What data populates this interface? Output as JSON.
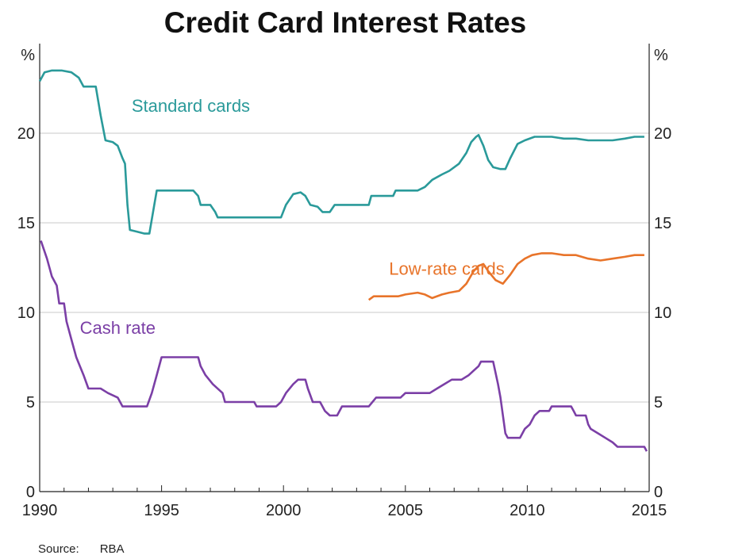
{
  "chart_data": {
    "type": "line",
    "title": "Credit Card Interest Rates",
    "y_unit": "%",
    "ylim": [
      0,
      25
    ],
    "yticks": [
      0,
      5,
      10,
      15,
      20
    ],
    "xlim": [
      1990,
      2015
    ],
    "xticks": [
      1990,
      1995,
      2000,
      2005,
      2010,
      2015
    ],
    "grid": true,
    "legend": "inline labels",
    "source_label": "Source:",
    "source": "RBA",
    "series": [
      {
        "name": "Standard cards",
        "color": "#2a9a9a",
        "points": [
          [
            1990.0,
            22.9
          ],
          [
            1990.2,
            23.4
          ],
          [
            1990.5,
            23.5
          ],
          [
            1990.9,
            23.5
          ],
          [
            1991.3,
            23.4
          ],
          [
            1991.6,
            23.1
          ],
          [
            1991.8,
            22.6
          ],
          [
            1992.3,
            22.6
          ],
          [
            1992.5,
            21.0
          ],
          [
            1992.7,
            19.6
          ],
          [
            1993.0,
            19.5
          ],
          [
            1993.2,
            19.3
          ],
          [
            1993.4,
            18.6
          ],
          [
            1993.5,
            18.3
          ],
          [
            1993.6,
            16.0
          ],
          [
            1993.7,
            14.6
          ],
          [
            1994.0,
            14.5
          ],
          [
            1994.3,
            14.4
          ],
          [
            1994.5,
            14.4
          ],
          [
            1994.7,
            16.0
          ],
          [
            1994.8,
            16.8
          ],
          [
            1995.5,
            16.8
          ],
          [
            1996.3,
            16.8
          ],
          [
            1996.5,
            16.5
          ],
          [
            1996.6,
            16.0
          ],
          [
            1997.0,
            16.0
          ],
          [
            1997.2,
            15.6
          ],
          [
            1997.3,
            15.3
          ],
          [
            1998.0,
            15.3
          ],
          [
            1999.0,
            15.3
          ],
          [
            1999.9,
            15.3
          ],
          [
            2000.1,
            16.0
          ],
          [
            2000.4,
            16.6
          ],
          [
            2000.7,
            16.7
          ],
          [
            2000.9,
            16.5
          ],
          [
            2001.1,
            16.0
          ],
          [
            2001.4,
            15.9
          ],
          [
            2001.6,
            15.6
          ],
          [
            2001.9,
            15.6
          ],
          [
            2002.1,
            16.0
          ],
          [
            2003.0,
            16.0
          ],
          [
            2003.5,
            16.0
          ],
          [
            2003.6,
            16.5
          ],
          [
            2004.5,
            16.5
          ],
          [
            2004.6,
            16.8
          ],
          [
            2005.5,
            16.8
          ],
          [
            2005.8,
            17.0
          ],
          [
            2006.1,
            17.4
          ],
          [
            2006.5,
            17.7
          ],
          [
            2006.8,
            17.9
          ],
          [
            2007.2,
            18.3
          ],
          [
            2007.5,
            18.9
          ],
          [
            2007.7,
            19.5
          ],
          [
            2007.9,
            19.8
          ],
          [
            2008.0,
            19.9
          ],
          [
            2008.2,
            19.3
          ],
          [
            2008.4,
            18.5
          ],
          [
            2008.6,
            18.1
          ],
          [
            2008.9,
            18.0
          ],
          [
            2009.1,
            18.0
          ],
          [
            2009.3,
            18.6
          ],
          [
            2009.6,
            19.4
          ],
          [
            2009.9,
            19.6
          ],
          [
            2010.3,
            19.8
          ],
          [
            2011.0,
            19.8
          ],
          [
            2011.5,
            19.7
          ],
          [
            2012.0,
            19.7
          ],
          [
            2012.5,
            19.6
          ],
          [
            2013.0,
            19.6
          ],
          [
            2013.5,
            19.6
          ],
          [
            2014.0,
            19.7
          ],
          [
            2014.4,
            19.8
          ],
          [
            2014.8,
            19.8
          ]
        ]
      },
      {
        "name": "Low-rate cards",
        "color": "#e8742a",
        "points": [
          [
            2003.5,
            10.7
          ],
          [
            2003.7,
            10.9
          ],
          [
            2004.0,
            10.9
          ],
          [
            2004.4,
            10.9
          ],
          [
            2004.7,
            10.9
          ],
          [
            2005.0,
            11.0
          ],
          [
            2005.5,
            11.1
          ],
          [
            2005.8,
            11.0
          ],
          [
            2006.1,
            10.8
          ],
          [
            2006.5,
            11.0
          ],
          [
            2006.8,
            11.1
          ],
          [
            2007.2,
            11.2
          ],
          [
            2007.5,
            11.6
          ],
          [
            2007.8,
            12.3
          ],
          [
            2008.0,
            12.6
          ],
          [
            2008.2,
            12.7
          ],
          [
            2008.4,
            12.3
          ],
          [
            2008.7,
            11.8
          ],
          [
            2009.0,
            11.6
          ],
          [
            2009.3,
            12.1
          ],
          [
            2009.6,
            12.7
          ],
          [
            2009.9,
            13.0
          ],
          [
            2010.2,
            13.2
          ],
          [
            2010.6,
            13.3
          ],
          [
            2011.0,
            13.3
          ],
          [
            2011.5,
            13.2
          ],
          [
            2012.0,
            13.2
          ],
          [
            2012.5,
            13.0
          ],
          [
            2013.0,
            12.9
          ],
          [
            2013.5,
            13.0
          ],
          [
            2014.0,
            13.1
          ],
          [
            2014.4,
            13.2
          ],
          [
            2014.8,
            13.2
          ]
        ]
      },
      {
        "name": "Cash rate",
        "color": "#7b3fa6",
        "points": [
          [
            1990.05,
            14.0
          ],
          [
            1990.3,
            13.0
          ],
          [
            1990.5,
            12.0
          ],
          [
            1990.7,
            11.5
          ],
          [
            1990.8,
            10.5
          ],
          [
            1991.0,
            10.5
          ],
          [
            1991.1,
            9.5
          ],
          [
            1991.3,
            8.5
          ],
          [
            1991.5,
            7.5
          ],
          [
            1991.8,
            6.5
          ],
          [
            1992.0,
            5.75
          ],
          [
            1992.5,
            5.75
          ],
          [
            1992.8,
            5.5
          ],
          [
            1993.2,
            5.25
          ],
          [
            1993.4,
            4.75
          ],
          [
            1994.0,
            4.75
          ],
          [
            1994.4,
            4.75
          ],
          [
            1994.6,
            5.5
          ],
          [
            1994.8,
            6.5
          ],
          [
            1995.0,
            7.5
          ],
          [
            1996.0,
            7.5
          ],
          [
            1996.5,
            7.5
          ],
          [
            1996.6,
            7.0
          ],
          [
            1996.8,
            6.5
          ],
          [
            1997.1,
            6.0
          ],
          [
            1997.5,
            5.5
          ],
          [
            1997.6,
            5.0
          ],
          [
            1998.0,
            5.0
          ],
          [
            1998.8,
            5.0
          ],
          [
            1998.9,
            4.75
          ],
          [
            1999.7,
            4.75
          ],
          [
            1999.9,
            5.0
          ],
          [
            2000.1,
            5.5
          ],
          [
            2000.4,
            6.0
          ],
          [
            2000.6,
            6.25
          ],
          [
            2000.9,
            6.25
          ],
          [
            2001.0,
            5.75
          ],
          [
            2001.2,
            5.0
          ],
          [
            2001.5,
            5.0
          ],
          [
            2001.7,
            4.5
          ],
          [
            2001.9,
            4.25
          ],
          [
            2002.2,
            4.25
          ],
          [
            2002.4,
            4.75
          ],
          [
            2003.0,
            4.75
          ],
          [
            2003.5,
            4.75
          ],
          [
            2003.8,
            5.25
          ],
          [
            2004.5,
            5.25
          ],
          [
            2004.8,
            5.25
          ],
          [
            2005.0,
            5.5
          ],
          [
            2006.0,
            5.5
          ],
          [
            2006.3,
            5.75
          ],
          [
            2006.6,
            6.0
          ],
          [
            2006.9,
            6.25
          ],
          [
            2007.3,
            6.25
          ],
          [
            2007.6,
            6.5
          ],
          [
            2007.8,
            6.75
          ],
          [
            2008.0,
            7.0
          ],
          [
            2008.1,
            7.25
          ],
          [
            2008.6,
            7.25
          ],
          [
            2008.8,
            6.0
          ],
          [
            2008.9,
            5.25
          ],
          [
            2009.0,
            4.25
          ],
          [
            2009.1,
            3.25
          ],
          [
            2009.2,
            3.0
          ],
          [
            2009.7,
            3.0
          ],
          [
            2009.9,
            3.5
          ],
          [
            2010.1,
            3.75
          ],
          [
            2010.3,
            4.25
          ],
          [
            2010.5,
            4.5
          ],
          [
            2010.9,
            4.5
          ],
          [
            2011.0,
            4.75
          ],
          [
            2011.8,
            4.75
          ],
          [
            2011.9,
            4.5
          ],
          [
            2012.0,
            4.25
          ],
          [
            2012.4,
            4.25
          ],
          [
            2012.5,
            3.75
          ],
          [
            2012.6,
            3.5
          ],
          [
            2012.9,
            3.25
          ],
          [
            2013.2,
            3.0
          ],
          [
            2013.5,
            2.75
          ],
          [
            2013.7,
            2.5
          ],
          [
            2014.5,
            2.5
          ],
          [
            2014.8,
            2.5
          ],
          [
            2014.9,
            2.25
          ]
        ]
      }
    ]
  }
}
